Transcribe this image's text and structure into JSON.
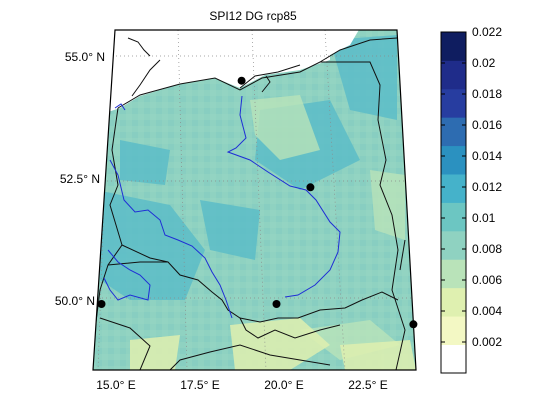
{
  "chart_data": {
    "type": "heatmap",
    "title": "SPI12 DG rcp85",
    "lat_labels": [
      {
        "value": 55.0,
        "text": "55.0° N"
      },
      {
        "value": 52.5,
        "text": "52.5° N"
      },
      {
        "value": 50.0,
        "text": "50.0° N"
      }
    ],
    "lon_labels": [
      {
        "value": 15.0,
        "text": "15.0° E"
      },
      {
        "value": 17.5,
        "text": "17.5° E"
      },
      {
        "value": 20.0,
        "text": "20.0° E"
      },
      {
        "value": 22.5,
        "text": "22.5° E"
      }
    ],
    "colorbar": {
      "ticks": [
        "0.002",
        "0.004",
        "0.006",
        "0.008",
        "0.01",
        "0.012",
        "0.014",
        "0.016",
        "0.018",
        "0.02",
        "0.022"
      ],
      "range": [
        0,
        0.022
      ],
      "colors": [
        "#ffffff",
        "#f3f8c4",
        "#dff0b0",
        "#b9e3b9",
        "#8fd2c1",
        "#6cc6c2",
        "#45b2ca",
        "#2b91c0",
        "#2d6cb1",
        "#273da0",
        "#1f2c8a",
        "#0f1d60"
      ]
    },
    "dominant_class": "0.008-0.01",
    "stations": [
      {
        "lon": 18.9,
        "lat": 54.4
      },
      {
        "lon": 20.9,
        "lat": 52.3
      },
      {
        "lon": 14.9,
        "lat": 50.0
      },
      {
        "lon": 19.9,
        "lat": 50.0
      },
      {
        "lon": 23.8,
        "lat": 49.6
      }
    ],
    "grid": true
  }
}
